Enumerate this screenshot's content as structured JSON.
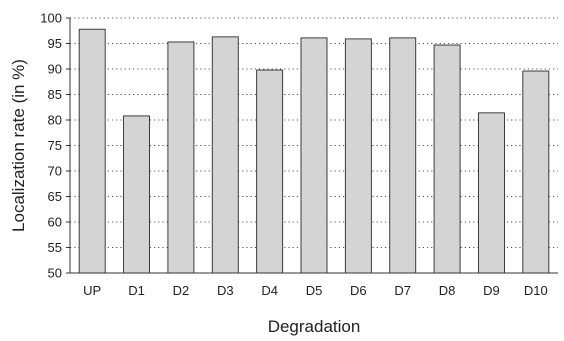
{
  "chart_data": {
    "type": "bar",
    "categories": [
      "UP",
      "D1",
      "D2",
      "D3",
      "D4",
      "D5",
      "D6",
      "D7",
      "D8",
      "D9",
      "D10"
    ],
    "values": [
      97.8,
      80.8,
      95.3,
      96.3,
      89.8,
      96.1,
      95.9,
      96.1,
      94.7,
      81.4,
      89.6
    ],
    "xlabel": "Degradation",
    "ylabel": "Localization rate (in %)",
    "ylim": [
      50,
      100
    ],
    "yticks": [
      50,
      55,
      60,
      65,
      70,
      75,
      80,
      85,
      90,
      95,
      100
    ],
    "grid": true,
    "legend": "none",
    "colors": {
      "bar_fill": "#d4d4d4",
      "bar_stroke": "#2a2a2a",
      "grid": "#555555",
      "axis": "#333333"
    }
  }
}
